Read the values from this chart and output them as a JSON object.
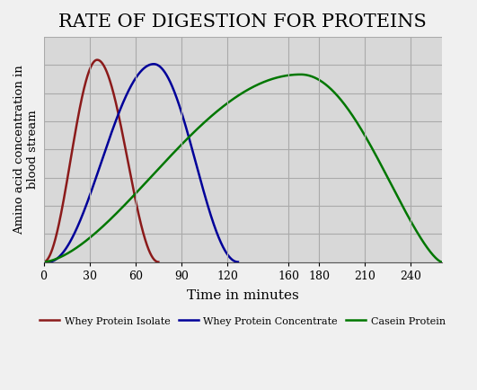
{
  "title": "RATE OF DIGESTION FOR PROTEINS",
  "xlabel": "Time in minutes",
  "ylabel": "Amino acid concentration in\nblood stream",
  "xlim": [
    0,
    260
  ],
  "ylim": [
    0,
    1.08
  ],
  "xticks": [
    0,
    30,
    60,
    90,
    120,
    160,
    180,
    210,
    240
  ],
  "plot_bg": "#d8d8d8",
  "fig_bg": "#f0f0f0",
  "grid_color": "#bbbbbb",
  "title_fontsize": 15,
  "label_fontsize": 11,
  "tick_fontsize": 9,
  "curves": [
    {
      "label": "Whey Protein Isolate",
      "color": "#8b1a1a",
      "peak_x": 35,
      "peak_y": 0.97,
      "start_x": 0,
      "end_x": 75,
      "rise_exp": 2.0,
      "fall_exp": 2.0
    },
    {
      "label": "Whey Protein Concentrate",
      "color": "#000099",
      "peak_x": 72,
      "peak_y": 0.95,
      "start_x": 3,
      "end_x": 127,
      "rise_exp": 2.0,
      "fall_exp": 2.0
    },
    {
      "label": "Casein Protein",
      "color": "#007700",
      "peak_x": 168,
      "peak_y": 0.9,
      "start_x": 0,
      "end_x": 260,
      "rise_exp": 1.6,
      "fall_exp": 1.4
    }
  ],
  "legend_labels": [
    "Whey Protein Isolate",
    "Whey Protein Concentrate",
    "Casein Protein"
  ],
  "legend_colors": [
    "#8b1a1a",
    "#000099",
    "#007700"
  ]
}
